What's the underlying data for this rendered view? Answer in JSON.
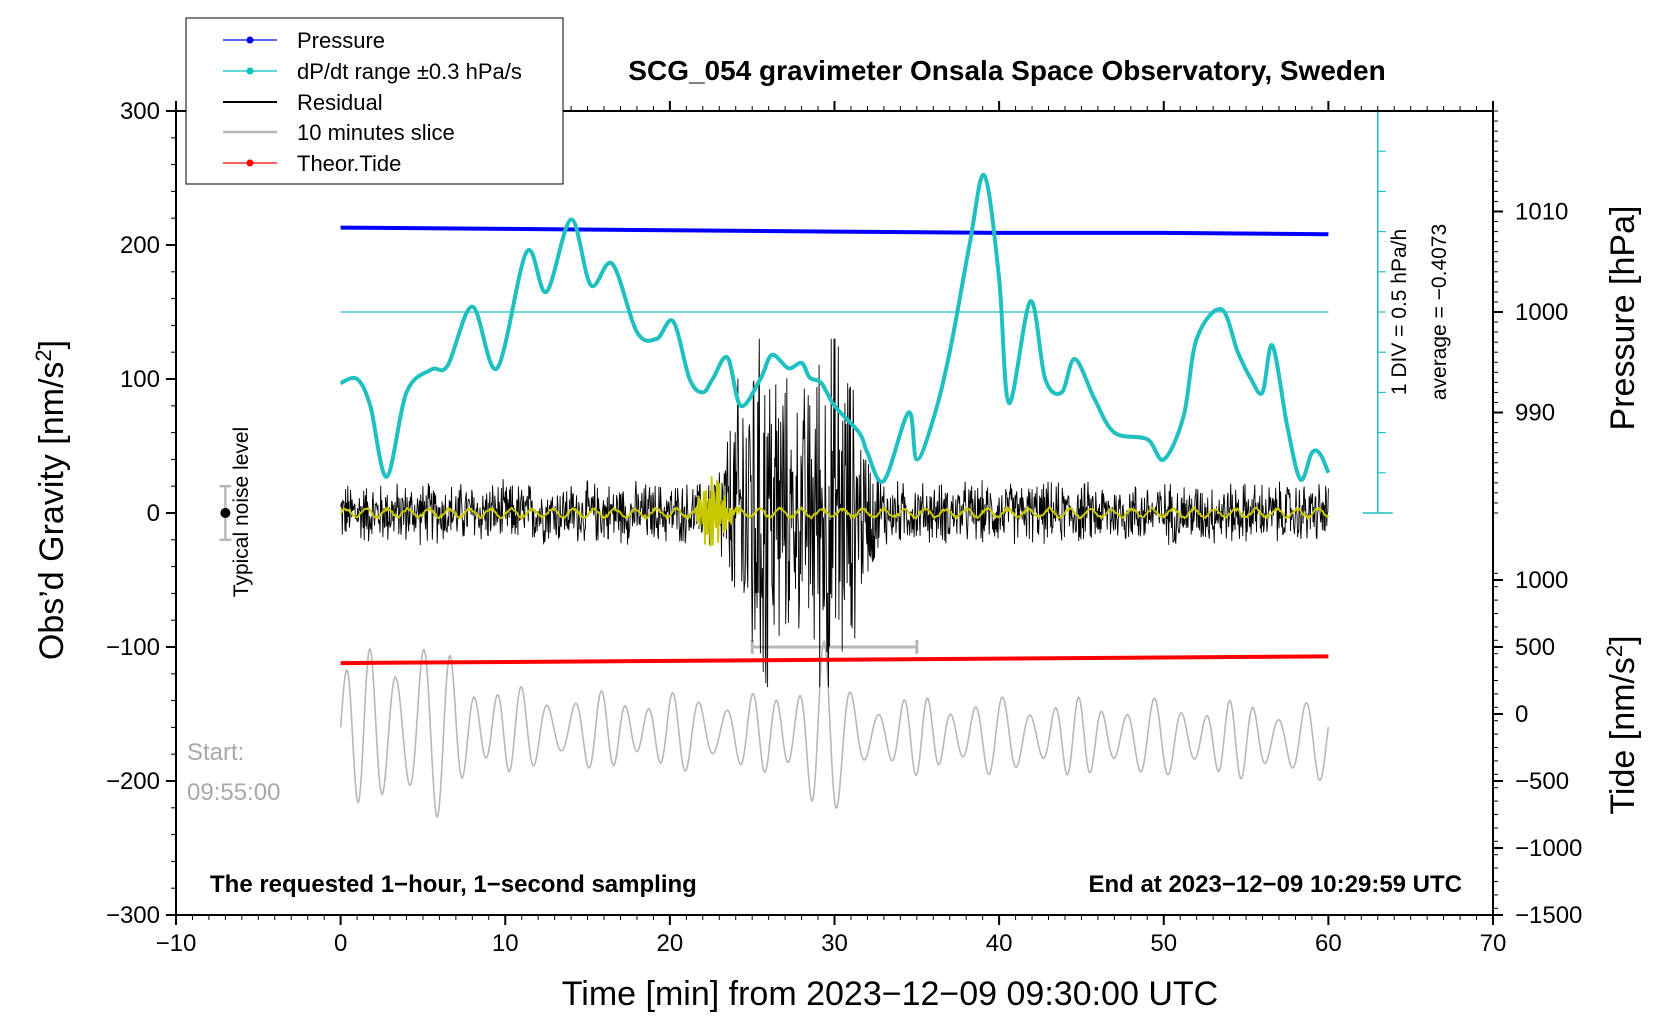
{
  "chart_data": {
    "type": "line",
    "title": "SCG_054 gravimeter Onsala Space Observatory, Sweden",
    "xlabel": "Time [min] from 2023−12−09 09:30:00 UTC",
    "ylabel_left": "Obs’d Gravity [nm/s2]",
    "ylabel_right_upper": "Pressure [hPa]",
    "ylabel_right_lower": "Tide [nm/s2]",
    "xlim": [
      -10,
      70
    ],
    "ylim": [
      -300,
      300
    ],
    "x_ticks": [
      -10,
      0,
      10,
      20,
      30,
      40,
      50,
      60,
      70
    ],
    "x_tick_labels": [
      "−10",
      "0",
      "10",
      "20",
      "30",
      "40",
      "50",
      "60",
      "70"
    ],
    "y_ticks": [
      300,
      200,
      100,
      0,
      -100,
      -200,
      -300
    ],
    "y_tick_labels": [
      "300",
      "200",
      "100",
      "0",
      "−100",
      "−200",
      "−300"
    ],
    "pressure_axis": {
      "ticks": [
        1010,
        1000,
        990
      ],
      "tick_labels": [
        "1010",
        "1000",
        "990"
      ],
      "gravity_equivalent": [
        225,
        150,
        75
      ]
    },
    "tide_axis": {
      "ticks": [
        1000,
        500,
        0,
        -500,
        -1000,
        -1500
      ],
      "tick_labels": [
        "1000",
        "500",
        "0",
        "−500",
        "−1000",
        "−1500"
      ],
      "gravity_equivalent": [
        -50,
        -100,
        -150,
        -200,
        -250,
        -300
      ]
    },
    "legend": [
      {
        "label": "Pressure",
        "color": "#0000ff",
        "marker": true
      },
      {
        "label": "dP/dt range ±0.3 hPa/s",
        "color": "#00c0c0",
        "marker": true
      },
      {
        "label": "Residual",
        "color": "#000000",
        "marker": false
      },
      {
        "label": "10 minutes slice",
        "color": "#b8b8b8",
        "marker": false
      },
      {
        "label": "Theor.Tide",
        "color": "#ff0000",
        "marker": true
      }
    ],
    "series": [
      {
        "name": "Pressure",
        "color": "#0000ff",
        "x": [
          0,
          10,
          20,
          30,
          40,
          50,
          60
        ],
        "y": [
          213,
          212,
          211,
          210,
          209,
          209,
          208
        ]
      },
      {
        "name": "dP/dt range ±0.3 hPa/s",
        "color": "#20c0c0",
        "x": [
          0,
          1,
          1.8,
          2.8,
          4,
          5.5,
          6.5,
          8,
          9.5,
          11.3,
          12.5,
          14,
          15.2,
          16.5,
          18,
          19.2,
          20.2,
          21.2,
          22,
          22.6,
          23.5,
          24.3,
          25.5,
          26.2,
          27.2,
          28,
          28.5,
          29.2,
          30,
          31.5,
          32,
          33,
          34.5,
          35,
          36,
          37,
          38.2,
          39.1,
          40,
          40.6,
          41.9,
          42.8,
          43.8,
          44.6,
          45.8,
          47,
          49,
          50,
          51.2,
          52,
          53.5,
          54.5,
          55.3,
          56,
          56.6,
          57.5,
          58.3,
          59,
          59.5,
          60
        ],
        "y": [
          97,
          100,
          80,
          27,
          90,
          107,
          110,
          154,
          108,
          195,
          165,
          219,
          170,
          186,
          135,
          130,
          143,
          100,
          90,
          100,
          116,
          80,
          100,
          118,
          108,
          112,
          101,
          97,
          80,
          60,
          45,
          24,
          75,
          40,
          70,
          120,
          200,
          252,
          175,
          82,
          158,
          100,
          90,
          115,
          85,
          60,
          55,
          40,
          72,
          130,
          152,
          120,
          100,
          90,
          125,
          65,
          25,
          45,
          44,
          30
        ]
      },
      {
        "name": "Residual",
        "color": "#000000",
        "x": [
          0,
          60
        ],
        "y": [
          0,
          0
        ],
        "envelope_events": [
          {
            "x": 25.5,
            "amplitude": 130
          },
          {
            "x": 29.8,
            "amplitude": 125
          }
        ]
      },
      {
        "name": "10 minutes slice",
        "color": "#b8b8b8",
        "x": [
          0,
          60
        ],
        "y": [
          -160,
          -170
        ]
      },
      {
        "name": "Theor.Tide",
        "color": "#ff0000",
        "x": [
          0,
          60
        ],
        "y": [
          -112,
          -107
        ]
      },
      {
        "name": "Smoothed residual",
        "color": "#c8c800",
        "x": [
          0,
          60
        ],
        "y": [
          0,
          0
        ]
      }
    ],
    "annotations": {
      "noise_level_label": "Typical noise level",
      "slice_bracket": {
        "x_start": 25,
        "x_end": 35,
        "y": -100
      },
      "noise_bar": {
        "x": -7,
        "y": 0,
        "half_range": 20
      },
      "start_label": "Start:",
      "start_time": "09:55:00",
      "left_note": "The requested 1−hour, 1−second sampling",
      "right_note": "End at 2023−12−09 10:29:59 UTC",
      "scale_note_1": "1 DIV = 0.5 hPa/h",
      "scale_note_2": "average = −0.4073"
    },
    "grid": false,
    "legend_position": "top-left"
  }
}
